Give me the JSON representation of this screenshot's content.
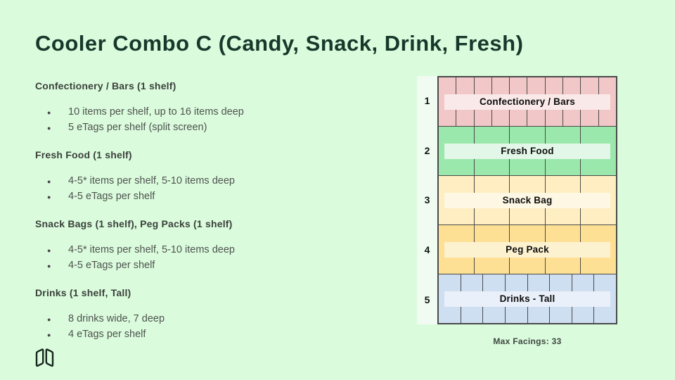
{
  "title": "Cooler Combo C (Candy, Snack, Drink, Fresh)",
  "sections": [
    {
      "heading": "Confectionery / Bars (1 shelf)",
      "bullets": [
        "10 items per shelf, up to 16 items deep",
        "5 eTags per shelf (split screen)"
      ]
    },
    {
      "heading": "Fresh Food (1 shelf)",
      "bullets": [
        "4-5* items per shelf, 5-10 items deep",
        "4-5 eTags per shelf"
      ]
    },
    {
      "heading": "Snack Bags (1 shelf), Peg Packs (1 shelf)",
      "bullets": [
        "4-5* items per shelf, 5-10 items deep",
        "4-5 eTags per shelf"
      ]
    },
    {
      "heading": "Drinks (1 shelf, Tall)",
      "bullets": [
        "8 drinks wide, 7 deep",
        "4 eTags per shelf"
      ]
    }
  ],
  "diagram": {
    "rows": [
      {
        "shelf_number": "1",
        "label": "Confectionery / Bars",
        "columns": 10,
        "cell_color": "#f2c7c7",
        "strip_color": "#f9e9e9"
      },
      {
        "shelf_number": "2",
        "label": "Fresh Food",
        "columns": 5,
        "cell_color": "#9ae8ac",
        "strip_color": "#e2f7e8"
      },
      {
        "shelf_number": "3",
        "label": "Snack Bag",
        "columns": 5,
        "cell_color": "#feeec2",
        "strip_color": "#fdf7e3"
      },
      {
        "shelf_number": "4",
        "label": "Peg Pack",
        "columns": 5,
        "cell_color": "#fee095",
        "strip_color": "#fdf2d0"
      },
      {
        "shelf_number": "5",
        "label": "Drinks - Tall",
        "columns": 8,
        "cell_color": "#cedff2",
        "strip_color": "#e9f0fa"
      }
    ],
    "footer": "Max Facings: 33"
  },
  "colors": {
    "background": "#dbfbdd",
    "title_text": "#17392b",
    "heading_text": "#3a413b",
    "body_text": "#4d534e",
    "grid_line": "#4a4a4a",
    "num_column_bg": "#f0fcf1"
  },
  "logo_icon": "folded-map-logo"
}
